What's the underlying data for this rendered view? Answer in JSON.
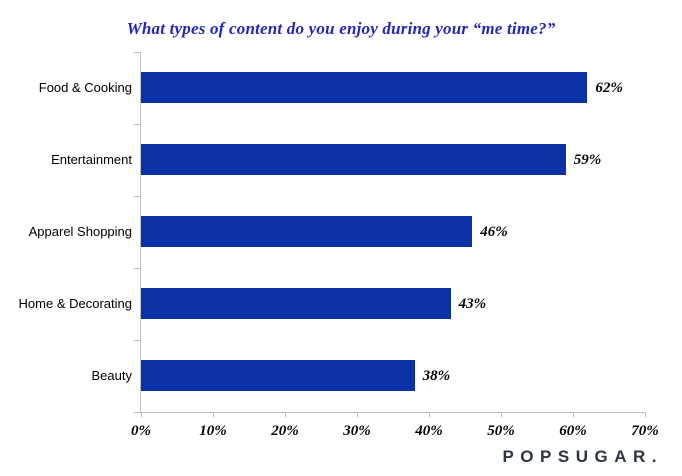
{
  "chart_data": {
    "type": "bar",
    "orientation": "horizontal",
    "title": "What types of content do you enjoy during your “me time?”",
    "categories": [
      "Food & Cooking",
      "Entertainment",
      "Apparel Shopping",
      "Home & Decorating",
      "Beauty"
    ],
    "values": [
      62,
      59,
      46,
      43,
      38
    ],
    "value_labels": [
      "62%",
      "59%",
      "46%",
      "43%",
      "38%"
    ],
    "xlim": [
      0,
      70
    ],
    "x_tick_labels": [
      "0%",
      "10%",
      "20%",
      "30%",
      "40%",
      "50%",
      "60%",
      "70%"
    ],
    "grid": false,
    "legend_position": "none",
    "colors": {
      "bar": "#0a31a6",
      "title": "#2525b8",
      "axis": "#bfbfbf",
      "labels": "#000000"
    }
  },
  "branding": {
    "logo_text": "POPSUGAR.",
    "logo_color": "#2b3543"
  }
}
